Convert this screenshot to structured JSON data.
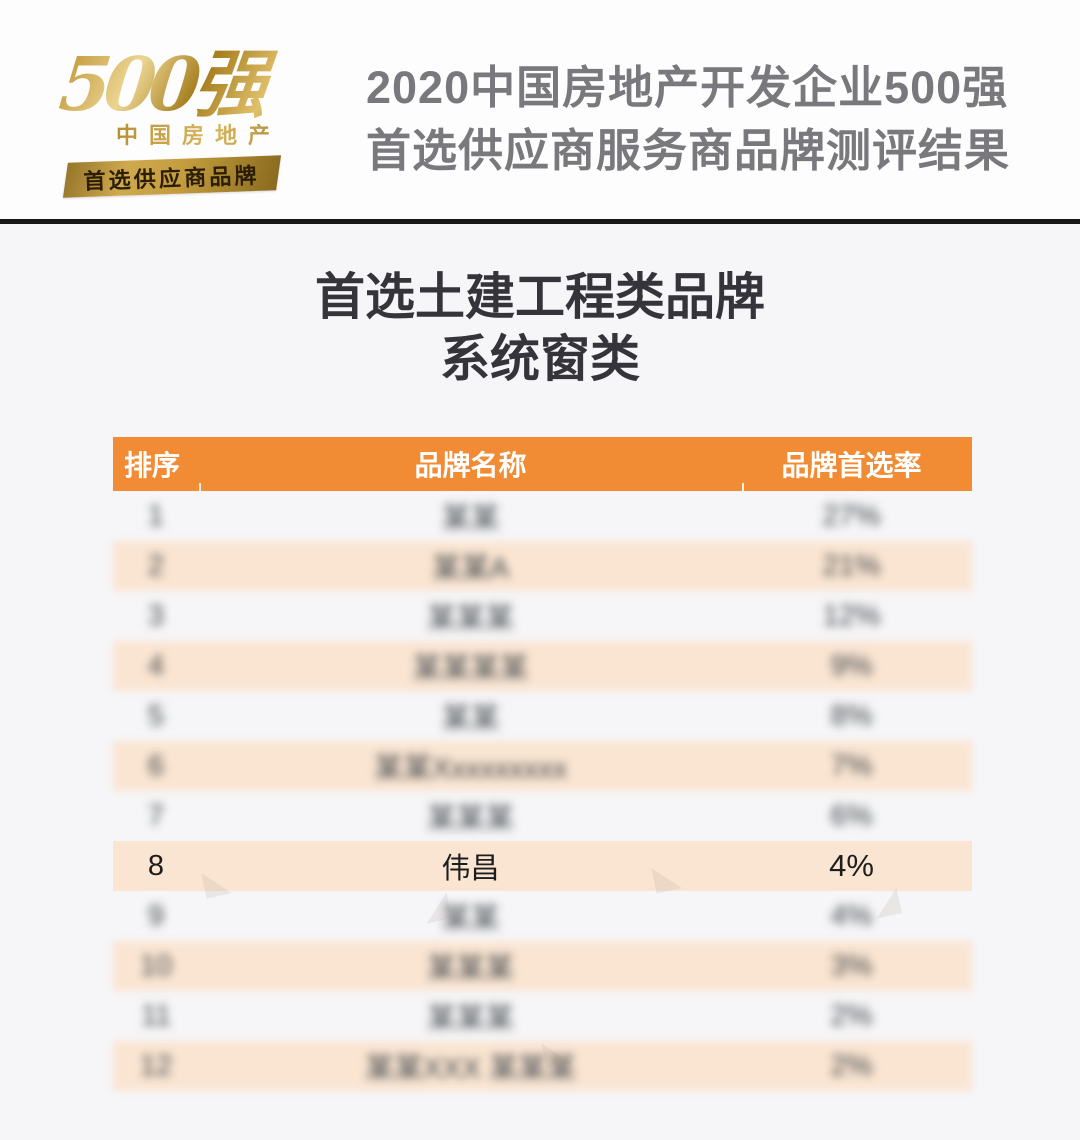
{
  "note": "rows flagged blurred:true are illegible (pixelated/blurred) in the source screenshot; their rank/name/rate strings are width-matched visual placeholders only",
  "logo": {
    "big_text": "500强",
    "sub_text": "中国房地产",
    "banner_text": "首选供应商品牌",
    "gold_color": "#b8922e"
  },
  "header": {
    "title_line1": "2020中国房地产开发企业500强",
    "title_line2": "首选供应商服务商品牌测评结果",
    "text_color": "#78787d"
  },
  "section": {
    "title_line1": "首选土建工程类品牌",
    "title_line2": "系统窗类"
  },
  "table": {
    "header_bg": "#f18c35",
    "alt_row_bg": "#fae5d2",
    "columns": [
      "排序",
      "品牌名称",
      "品牌首选率"
    ],
    "rows": [
      {
        "rank": "1",
        "name": "某某",
        "rate": "27%",
        "blurred": true
      },
      {
        "rank": "2",
        "name": "某某A",
        "rate": "21%",
        "blurred": true
      },
      {
        "rank": "3",
        "name": "某某某",
        "rate": "12%",
        "blurred": true
      },
      {
        "rank": "4",
        "name": "某某某某",
        "rate": "9%",
        "blurred": true
      },
      {
        "rank": "5",
        "name": "某某",
        "rate": "8%",
        "blurred": true
      },
      {
        "rank": "6",
        "name": "某某Xxxxxxxxx",
        "rate": "7%",
        "blurred": true
      },
      {
        "rank": "7",
        "name": "某某某",
        "rate": "6%",
        "blurred": true
      },
      {
        "rank": "8",
        "name": "伟昌",
        "rate": "4%",
        "blurred": false
      },
      {
        "rank": "9",
        "name": "某某",
        "rate": "4%",
        "blurred": true
      },
      {
        "rank": "10",
        "name": "某某某",
        "rate": "3%",
        "blurred": true
      },
      {
        "rank": "11",
        "name": "某某某",
        "rate": "2%",
        "blurred": true
      },
      {
        "rank": "12",
        "name": "某某XXX 某某某",
        "rate": "2%",
        "blurred": true
      }
    ]
  },
  "watermarks": [
    "◣",
    "◢",
    "◣",
    "◢",
    "◣"
  ]
}
